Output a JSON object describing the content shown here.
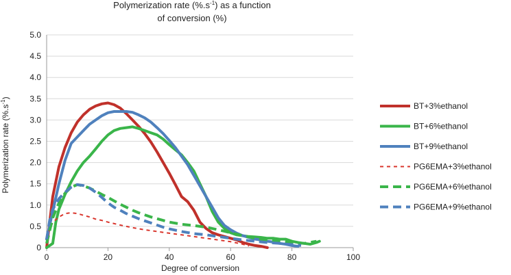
{
  "chart_data": {
    "type": "line",
    "title": [
      "Polymerization rate (%.s",
      "-1",
      ") as a function",
      "of conversion (%)"
    ],
    "xlabel": "Degree of conversion",
    "ylabel": [
      "Polymerization rate (%.s",
      "-1",
      ")"
    ],
    "xlim": [
      0,
      100
    ],
    "ylim": [
      0,
      5
    ],
    "xticks": [
      "0",
      "20",
      "40",
      "60",
      "80",
      "100"
    ],
    "yticks": [
      "0",
      "0.5",
      "1.0",
      "1.5",
      "2.0",
      "2.5",
      "3.0",
      "3.5",
      "4.0",
      "4.5",
      "5.0"
    ],
    "grid": "horizontal",
    "legend_position": "right",
    "series": [
      {
        "name": "BT+3%ethanol",
        "color": "#c0312b",
        "style": "solid",
        "x": [
          0,
          2,
          4,
          6,
          8,
          10,
          12,
          14,
          16,
          18,
          20,
          22,
          24,
          26,
          28,
          30,
          32,
          34,
          36,
          38,
          40,
          42,
          44,
          46,
          48,
          50,
          52,
          54,
          56,
          58,
          60,
          62,
          64,
          66,
          68,
          70,
          72
        ],
        "y": [
          0,
          1.2,
          1.9,
          2.35,
          2.7,
          2.95,
          3.12,
          3.25,
          3.33,
          3.38,
          3.4,
          3.36,
          3.28,
          3.15,
          3.0,
          2.85,
          2.68,
          2.48,
          2.25,
          2.0,
          1.75,
          1.48,
          1.2,
          1.08,
          0.88,
          0.6,
          0.45,
          0.35,
          0.3,
          0.26,
          0.22,
          0.18,
          0.12,
          0.08,
          0.05,
          0.03,
          0
        ]
      },
      {
        "name": "BT+6%ethanol",
        "color": "#3ab54a",
        "style": "solid",
        "x": [
          0,
          2,
          3,
          4,
          6,
          8,
          10,
          12,
          14,
          16,
          18,
          20,
          22,
          24,
          26,
          28,
          30,
          32,
          34,
          36,
          38,
          40,
          42,
          44,
          46,
          48,
          50,
          52,
          54,
          56,
          58,
          60,
          62,
          64,
          66,
          68,
          70,
          72,
          74,
          76,
          78,
          80,
          82,
          84,
          86,
          88,
          89
        ],
        "y": [
          0,
          0.1,
          0.6,
          0.9,
          1.25,
          1.55,
          1.8,
          2.0,
          2.15,
          2.32,
          2.5,
          2.65,
          2.75,
          2.8,
          2.82,
          2.84,
          2.8,
          2.75,
          2.7,
          2.65,
          2.55,
          2.42,
          2.3,
          2.18,
          2.0,
          1.8,
          1.5,
          1.2,
          0.85,
          0.6,
          0.45,
          0.35,
          0.3,
          0.28,
          0.26,
          0.25,
          0.24,
          0.22,
          0.22,
          0.2,
          0.2,
          0.15,
          0.12,
          0.1,
          0.08,
          0.12,
          0.15
        ]
      },
      {
        "name": "BT+9%ethanol",
        "color": "#4f81bd",
        "style": "solid",
        "x": [
          0,
          2,
          4,
          6,
          8,
          10,
          12,
          14,
          16,
          18,
          20,
          22,
          24,
          26,
          28,
          30,
          32,
          34,
          36,
          38,
          40,
          42,
          44,
          46,
          48,
          50,
          52,
          54,
          56,
          58,
          60,
          62,
          64,
          66,
          68,
          70,
          72,
          74,
          76,
          78,
          80,
          82
        ],
        "y": [
          0.2,
          0.85,
          1.5,
          2.05,
          2.45,
          2.6,
          2.75,
          2.9,
          3.0,
          3.1,
          3.17,
          3.2,
          3.2,
          3.2,
          3.18,
          3.12,
          3.05,
          2.95,
          2.82,
          2.68,
          2.52,
          2.35,
          2.15,
          1.95,
          1.7,
          1.45,
          1.2,
          0.95,
          0.7,
          0.52,
          0.42,
          0.34,
          0.28,
          0.24,
          0.2,
          0.18,
          0.15,
          0.13,
          0.1,
          0.08,
          0.05,
          0.03
        ]
      },
      {
        "name": "PG6EMA+3%ethanol",
        "color": "#d9342b",
        "style": "dotted",
        "x": [
          0,
          1,
          2,
          3,
          4,
          6,
          8,
          10,
          12,
          14,
          16,
          18,
          20,
          24,
          28,
          32,
          36,
          40,
          44,
          48,
          52,
          56,
          60,
          64,
          66
        ],
        "y": [
          0.2,
          0.45,
          0.58,
          0.66,
          0.72,
          0.8,
          0.82,
          0.8,
          0.76,
          0.72,
          0.67,
          0.64,
          0.6,
          0.53,
          0.47,
          0.42,
          0.38,
          0.34,
          0.3,
          0.26,
          0.22,
          0.18,
          0.14,
          0.08,
          0.04
        ]
      },
      {
        "name": "PG6EMA+6%ethanol",
        "color": "#3ab54a",
        "style": "dashed",
        "x": [
          0,
          2,
          4,
          6,
          8,
          10,
          12,
          14,
          16,
          18,
          20,
          22,
          24,
          26,
          28,
          30,
          32,
          34,
          36,
          38,
          40,
          44,
          48,
          52,
          56,
          60,
          64,
          68,
          72,
          76,
          80,
          84,
          88
        ],
        "y": [
          0.1,
          0.7,
          1.05,
          1.28,
          1.42,
          1.48,
          1.45,
          1.4,
          1.33,
          1.25,
          1.18,
          1.1,
          1.02,
          0.95,
          0.88,
          0.82,
          0.77,
          0.72,
          0.68,
          0.64,
          0.6,
          0.55,
          0.52,
          0.48,
          0.42,
          0.35,
          0.28,
          0.22,
          0.18,
          0.15,
          0.12,
          0.1,
          0.15
        ]
      },
      {
        "name": "PG6EMA+9%ethanol",
        "color": "#4f81bd",
        "style": "dashed",
        "x": [
          0,
          1,
          2,
          4,
          6,
          8,
          10,
          12,
          14,
          16,
          18,
          20,
          22,
          24,
          26,
          28,
          30,
          32,
          34,
          36,
          38,
          40,
          44,
          48,
          52,
          56,
          60,
          64,
          68,
          72,
          76,
          80,
          83
        ],
        "y": [
          0.2,
          0.65,
          0.9,
          1.15,
          1.3,
          1.42,
          1.48,
          1.46,
          1.4,
          1.3,
          1.18,
          1.05,
          0.95,
          0.88,
          0.8,
          0.74,
          0.68,
          0.63,
          0.58,
          0.53,
          0.48,
          0.44,
          0.38,
          0.33,
          0.3,
          0.26,
          0.22,
          0.18,
          0.15,
          0.12,
          0.1,
          0.07,
          0.05
        ]
      }
    ]
  }
}
